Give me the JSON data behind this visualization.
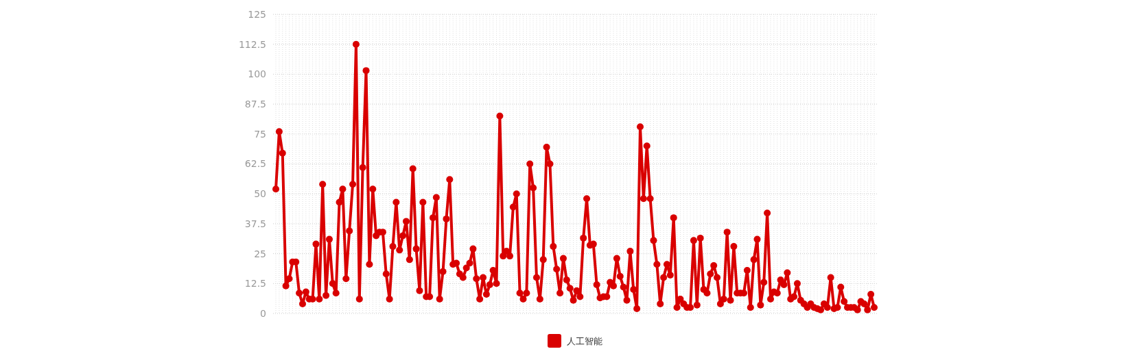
{
  "chart_data": {
    "type": "line",
    "categories": [
      null,
      null,
      null,
      null,
      null,
      null,
      null,
      null,
      null,
      null,
      null,
      null,
      null,
      null,
      null,
      null,
      null,
      null,
      null,
      null,
      null,
      null,
      null,
      null,
      null,
      null,
      null,
      null,
      null,
      null,
      null,
      null,
      null,
      null,
      null,
      null,
      null,
      null,
      null,
      null,
      null,
      null,
      null,
      null,
      null,
      null,
      null,
      null,
      null,
      null,
      null,
      null,
      null,
      null,
      null,
      null,
      null,
      null,
      null,
      null,
      null,
      null,
      null,
      null,
      null,
      null,
      null,
      null,
      null,
      null,
      null,
      null,
      null,
      null,
      null,
      null,
      null,
      null,
      null,
      null,
      null,
      null,
      null,
      null,
      null,
      null,
      null,
      null,
      null,
      null,
      null,
      null,
      null,
      null,
      null,
      null,
      null,
      null,
      null,
      null,
      null,
      null,
      null,
      null,
      null,
      null,
      null,
      null,
      null,
      null,
      null,
      null,
      null,
      null,
      null,
      null,
      null,
      null,
      null,
      null,
      null,
      null,
      null,
      null,
      null,
      null,
      null,
      null,
      null,
      null,
      null,
      null,
      null,
      null,
      null,
      null,
      null,
      null,
      null,
      null,
      null,
      null,
      null,
      null,
      null,
      null,
      null,
      null,
      null,
      null,
      null,
      null,
      null,
      null,
      null,
      null,
      null,
      null,
      null,
      null,
      null,
      null,
      null,
      null,
      null,
      null,
      null,
      null,
      null,
      null,
      null,
      null,
      null,
      null,
      null,
      null,
      null,
      null,
      null,
      null
    ],
    "series": [
      {
        "name": "人工智能",
        "color": "#d90000",
        "values": [
          52,
          76,
          67,
          11.5,
          14.5,
          21.5,
          21.5,
          8.5,
          4,
          9,
          6,
          6,
          29,
          6,
          54,
          7.5,
          31,
          12.5,
          8.5,
          46.5,
          52,
          14.5,
          34.5,
          54,
          112.5,
          6,
          61,
          101.5,
          20.5,
          52,
          32.5,
          34,
          34,
          16.5,
          6,
          28,
          46.5,
          26.5,
          32.5,
          38.5,
          22.5,
          60.5,
          27,
          9.5,
          46.5,
          7,
          7,
          40,
          48.5,
          6,
          17.5,
          39.5,
          56,
          20.5,
          21,
          16.5,
          15,
          19,
          21,
          27,
          14.5,
          6,
          15,
          8,
          12,
          18,
          12.5,
          82.5,
          24,
          26,
          24,
          44.5,
          50,
          8.5,
          6,
          8.5,
          62.5,
          52.5,
          15,
          6,
          22.5,
          69.5,
          62.5,
          28,
          18.5,
          8.5,
          23,
          14,
          10.5,
          5.5,
          9.5,
          7,
          31.5,
          48,
          28.5,
          29,
          12,
          6.5,
          7,
          7,
          13,
          11.5,
          23,
          15.5,
          11,
          5.5,
          26,
          10,
          2,
          78,
          48,
          70,
          48,
          30.5,
          20.5,
          4,
          15,
          20.5,
          16,
          40,
          2.5,
          6,
          4,
          2.5,
          2.5,
          30.5,
          3.5,
          31.5,
          10,
          8.5,
          16.5,
          20,
          15,
          4,
          6,
          34,
          5.5,
          28,
          8.5,
          8.5,
          8.5,
          18,
          2.5,
          22.5,
          31,
          3.5,
          13,
          42,
          6,
          9,
          8.5,
          14,
          12,
          17,
          6,
          7,
          12.5,
          5.5,
          4,
          2.5,
          4,
          2.5,
          2,
          1.5,
          4,
          2.5,
          15,
          2,
          2.5,
          11,
          5,
          2.5,
          2.5,
          2.5,
          1.5,
          5,
          4,
          1.5,
          8,
          2.5
        ]
      }
    ],
    "ylim": [
      0,
      125
    ],
    "yticks": [
      0,
      12.5,
      25,
      37.5,
      50,
      62.5,
      75,
      87.5,
      100,
      112.5,
      125
    ],
    "grid": true,
    "legend": "bottom",
    "marker": "circle",
    "line_style": "solid"
  }
}
